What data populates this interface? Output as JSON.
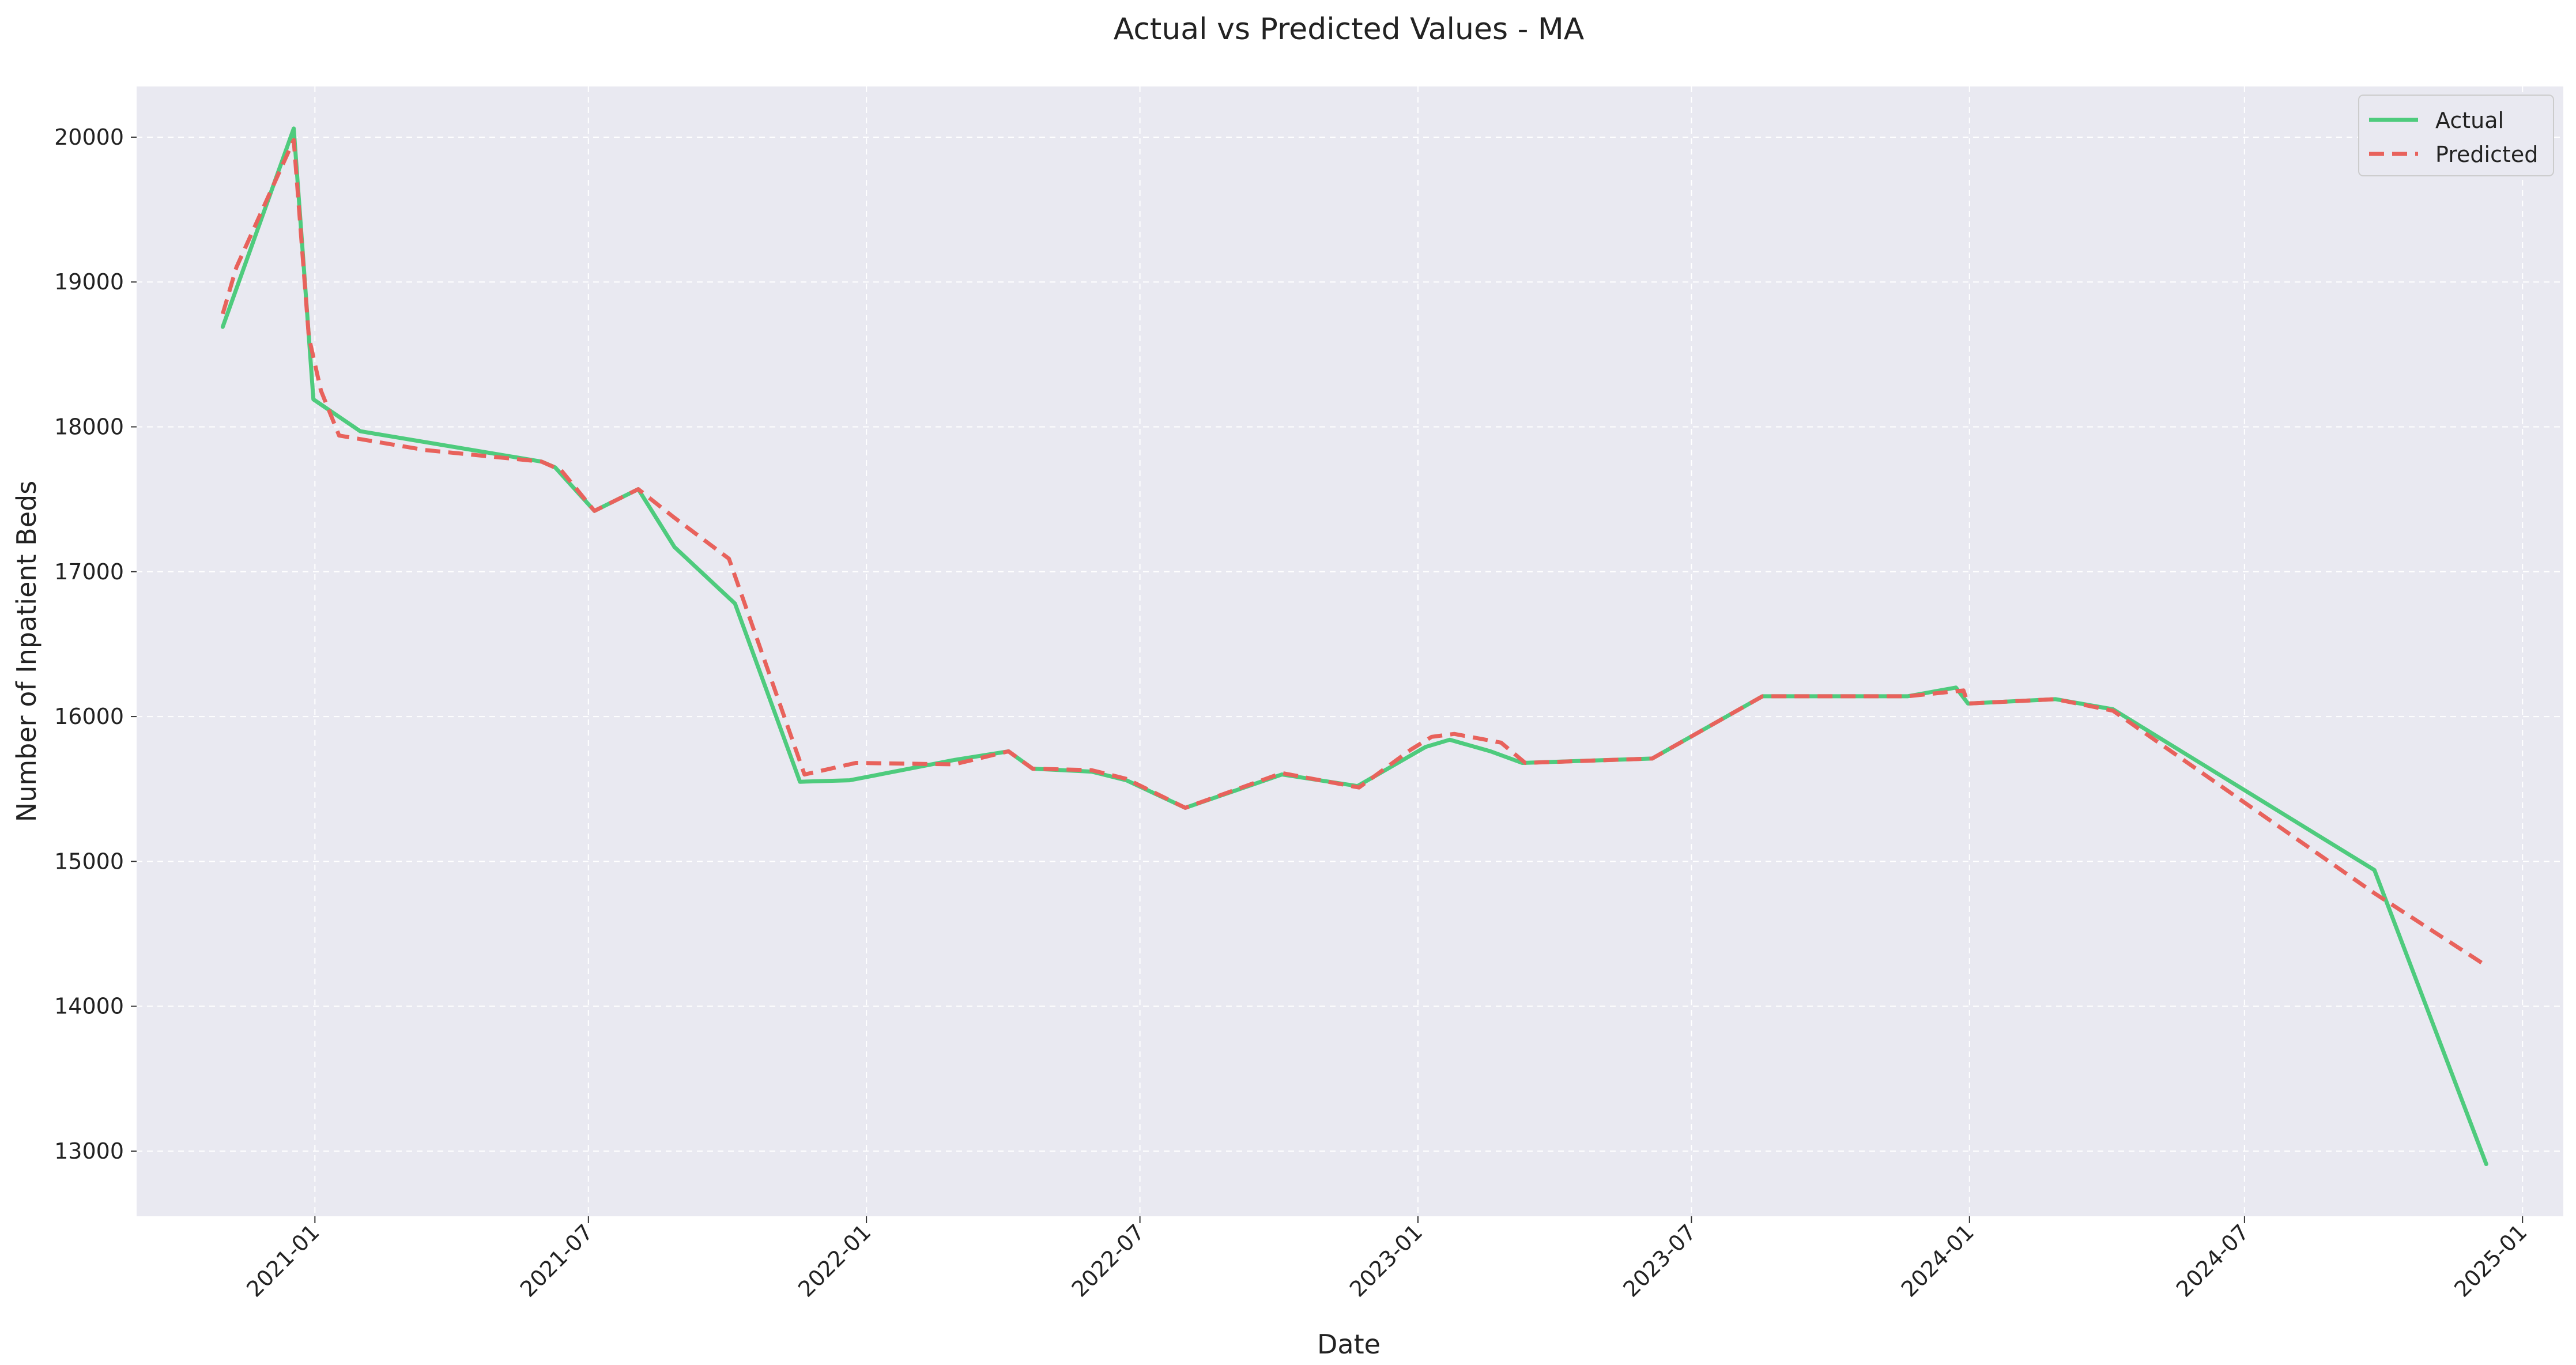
{
  "chart_data": {
    "type": "line",
    "title": "Actual vs Predicted Values - MA",
    "xlabel": "Date",
    "ylabel": "Number of Inpatient Beds",
    "xlim": [
      "2020-09-05",
      "2025-01-28"
    ],
    "ylim": [
      12550,
      20350
    ],
    "x_ticks": [
      "2021-01",
      "2021-07",
      "2022-01",
      "2022-07",
      "2023-01",
      "2023-07",
      "2024-01",
      "2024-07",
      "2025-01"
    ],
    "y_ticks": [
      13000,
      14000,
      15000,
      16000,
      17000,
      18000,
      19000,
      20000
    ],
    "grid": true,
    "legend_position": "top-right",
    "background": "#e9e9f1",
    "series": [
      {
        "name": "Actual",
        "color": "#4ecb7d",
        "style": "solid",
        "points": [
          [
            "2020-11-01",
            18690
          ],
          [
            "2020-12-18",
            20060
          ],
          [
            "2020-12-31",
            18190
          ],
          [
            "2021-01-31",
            17970
          ],
          [
            "2021-05-31",
            17760
          ],
          [
            "2021-06-09",
            17720
          ],
          [
            "2021-07-05",
            17420
          ],
          [
            "2021-08-03",
            17570
          ],
          [
            "2021-08-27",
            17170
          ],
          [
            "2021-10-06",
            16780
          ],
          [
            "2021-11-18",
            15550
          ],
          [
            "2021-12-21",
            15560
          ],
          [
            "2022-02-28",
            15700
          ],
          [
            "2022-04-05",
            15760
          ],
          [
            "2022-04-21",
            15640
          ],
          [
            "2022-05-30",
            15620
          ],
          [
            "2022-06-22",
            15560
          ],
          [
            "2022-07-31",
            15370
          ],
          [
            "2022-10-03",
            15600
          ],
          [
            "2022-11-22",
            15520
          ],
          [
            "2023-01-06",
            15790
          ],
          [
            "2023-01-22",
            15840
          ],
          [
            "2023-02-18",
            15760
          ],
          [
            "2023-03-11",
            15680
          ],
          [
            "2023-06-05",
            15710
          ],
          [
            "2023-08-17",
            16140
          ],
          [
            "2023-11-21",
            16140
          ],
          [
            "2023-12-23",
            16200
          ],
          [
            "2023-12-31",
            16090
          ],
          [
            "2024-02-27",
            16120
          ],
          [
            "2024-04-05",
            16050
          ],
          [
            "2024-09-25",
            14940
          ],
          [
            "2024-12-08",
            12910
          ]
        ]
      },
      {
        "name": "Predicted",
        "color": "#e8625c",
        "style": "dashed",
        "points": [
          [
            "2020-11-01",
            18780
          ],
          [
            "2020-11-10",
            19100
          ],
          [
            "2020-12-18",
            19980
          ],
          [
            "2020-12-28",
            18620
          ],
          [
            "2021-01-05",
            18250
          ],
          [
            "2021-01-17",
            17940
          ],
          [
            "2021-03-15",
            17840
          ],
          [
            "2021-05-31",
            17760
          ],
          [
            "2021-06-13",
            17700
          ],
          [
            "2021-07-05",
            17420
          ],
          [
            "2021-08-03",
            17570
          ],
          [
            "2021-08-26",
            17380
          ],
          [
            "2021-10-02",
            17090
          ],
          [
            "2021-11-21",
            15600
          ],
          [
            "2021-12-25",
            15680
          ],
          [
            "2022-02-28",
            15670
          ],
          [
            "2022-04-05",
            15760
          ],
          [
            "2022-04-21",
            15640
          ],
          [
            "2022-05-30",
            15630
          ],
          [
            "2022-06-22",
            15570
          ],
          [
            "2022-07-31",
            15370
          ],
          [
            "2022-10-03",
            15610
          ],
          [
            "2022-11-23",
            15510
          ],
          [
            "2022-12-27",
            15770
          ],
          [
            "2023-01-10",
            15860
          ],
          [
            "2023-01-25",
            15880
          ],
          [
            "2023-02-25",
            15820
          ],
          [
            "2023-03-13",
            15680
          ],
          [
            "2023-06-05",
            15710
          ],
          [
            "2023-08-17",
            16140
          ],
          [
            "2023-11-21",
            16140
          ],
          [
            "2023-12-28",
            16180
          ],
          [
            "2023-12-31",
            16090
          ],
          [
            "2024-02-27",
            16120
          ],
          [
            "2024-04-05",
            16040
          ],
          [
            "2024-09-25",
            14780
          ],
          [
            "2024-12-08",
            14280
          ]
        ]
      }
    ]
  }
}
